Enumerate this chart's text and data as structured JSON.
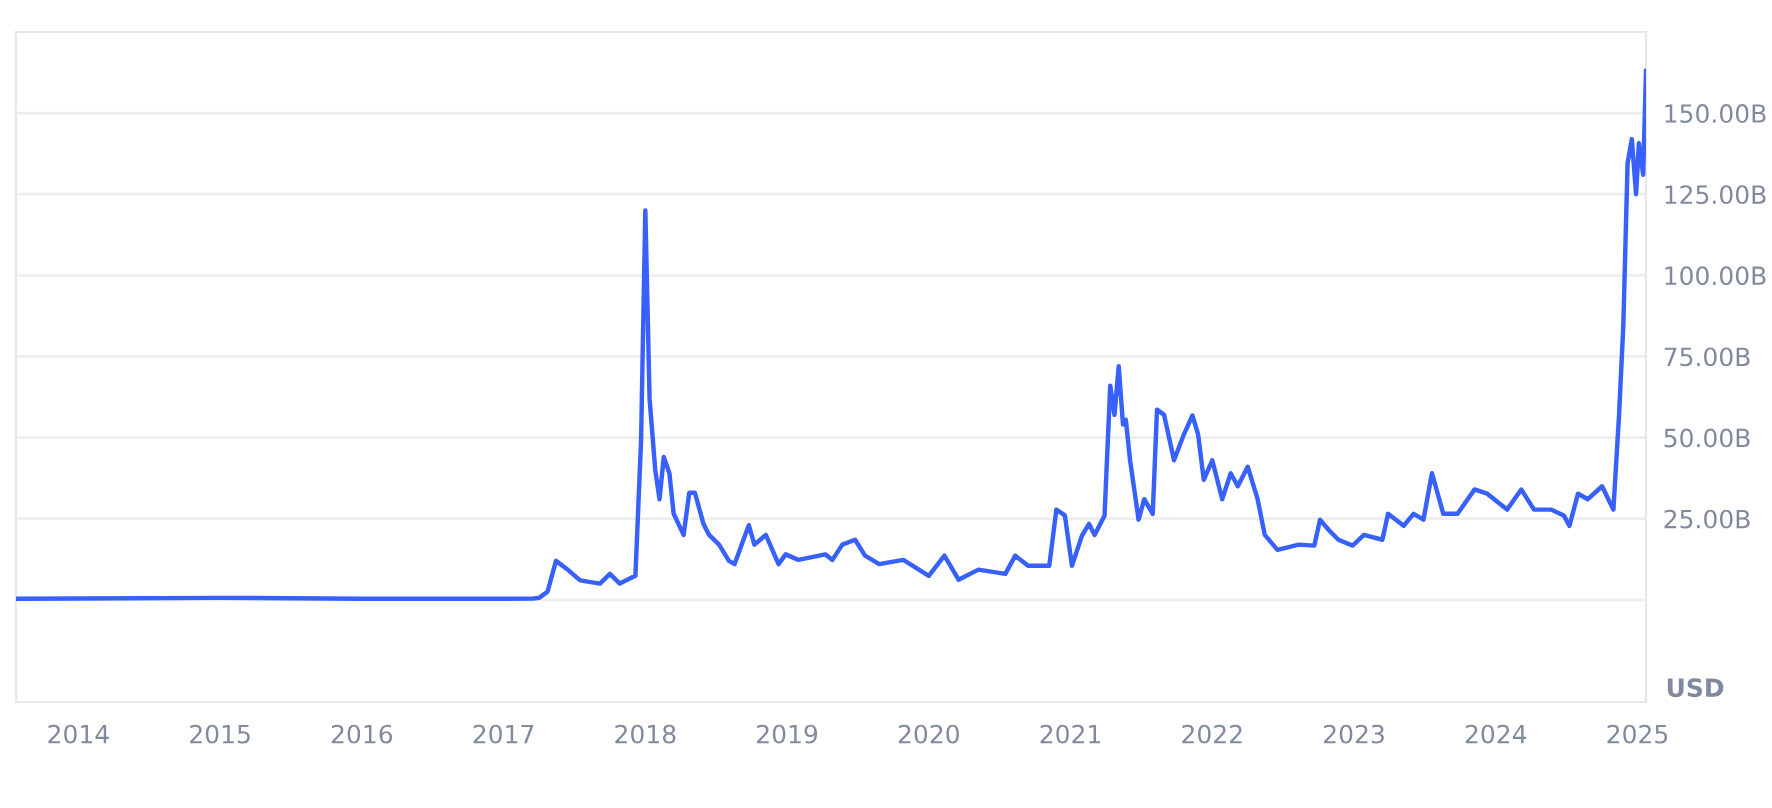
{
  "chart_data": {
    "type": "line",
    "x": [
      2013.56,
      2014.0,
      2015.0,
      2016.0,
      2017.0,
      2017.21,
      2017.25,
      2017.31,
      2017.37,
      2017.46,
      2017.54,
      2017.68,
      2017.75,
      2017.82,
      2017.93,
      2017.97,
      2018.0,
      2018.03,
      2018.07,
      2018.1,
      2018.13,
      2018.17,
      2018.2,
      2018.27,
      2018.31,
      2018.35,
      2018.41,
      2018.45,
      2018.52,
      2018.59,
      2018.63,
      2018.73,
      2018.77,
      2018.85,
      2018.94,
      2018.99,
      2019.08,
      2019.27,
      2019.32,
      2019.39,
      2019.48,
      2019.55,
      2019.65,
      2019.82,
      2020.0,
      2020.11,
      2020.21,
      2020.35,
      2020.54,
      2020.61,
      2020.7,
      2020.85,
      2020.9,
      2020.96,
      2021.01,
      2021.08,
      2021.13,
      2021.17,
      2021.24,
      2021.28,
      2021.31,
      2021.34,
      2021.37,
      2021.39,
      2021.42,
      2021.48,
      2021.52,
      2021.58,
      2021.61,
      2021.66,
      2021.73,
      2021.8,
      2021.86,
      2021.9,
      2021.94,
      2022.0,
      2022.07,
      2022.13,
      2022.18,
      2022.25,
      2022.32,
      2022.37,
      2022.46,
      2022.61,
      2022.72,
      2022.76,
      2022.82,
      2022.89,
      2022.99,
      2023.07,
      2023.2,
      2023.24,
      2023.35,
      2023.42,
      2023.49,
      2023.55,
      2023.63,
      2023.73,
      2023.77,
      2023.85,
      2023.94,
      2024.08,
      2024.18,
      2024.27,
      2024.39,
      2024.48,
      2024.52,
      2024.58,
      2024.65,
      2024.75,
      2024.83,
      2024.87,
      2024.9,
      2024.93,
      2024.96,
      2024.99,
      2025.01,
      2025.04,
      2025.06
    ],
    "values": [
      0.3,
      0.4,
      0.6,
      0.3,
      0.3,
      0.4,
      0.6,
      2.5,
      12,
      9,
      6,
      5,
      8,
      5,
      7.4,
      49,
      120,
      62,
      40,
      31,
      44,
      39,
      26.5,
      20,
      33,
      33,
      23.4,
      20,
      17,
      12,
      11,
      23,
      17,
      20,
      11,
      14,
      12.3,
      14,
      12.3,
      17,
      18.5,
      13.6,
      11,
      12.3,
      7.4,
      13.6,
      6.2,
      9.3,
      8,
      13.6,
      10.5,
      10.5,
      27.8,
      26,
      10.5,
      19.7,
      23.4,
      20,
      26,
      66,
      57,
      72,
      54,
      55.5,
      43,
      24.7,
      31,
      26.5,
      58.6,
      57,
      43,
      51,
      56.8,
      51,
      37,
      43,
      31,
      39,
      35,
      41,
      31,
      20,
      15.4,
      17,
      16.7,
      24.7,
      21.6,
      18.5,
      16.7,
      20,
      18.5,
      26.5,
      22.8,
      26.5,
      24.7,
      39,
      26.5,
      26.5,
      29,
      34,
      32.7,
      27.8,
      34,
      27.8,
      27.8,
      26,
      22.8,
      32.7,
      31,
      35,
      27.8,
      57,
      84.5,
      134.5,
      142,
      125,
      140.7,
      131,
      163
    ],
    "color": "#3861fb",
    "xlim": [
      2013.56,
      2025.06
    ],
    "xticks": [
      2014,
      2015,
      2016,
      2017,
      2018,
      2019,
      2020,
      2021,
      2022,
      2023,
      2024,
      2025
    ],
    "ylim": [
      -31.5,
      175
    ],
    "yticks": [
      {
        "value": 0,
        "label": null
      },
      {
        "value": 25,
        "label": "25.00B"
      },
      {
        "value": 50,
        "label": "50.00B"
      },
      {
        "value": 75,
        "label": "75.00B"
      },
      {
        "value": 100,
        "label": "100.00B"
      },
      {
        "value": 125,
        "label": "125.00B"
      },
      {
        "value": 150,
        "label": "150.00B"
      }
    ],
    "grid": "y",
    "annotations": [
      "USD"
    ]
  }
}
